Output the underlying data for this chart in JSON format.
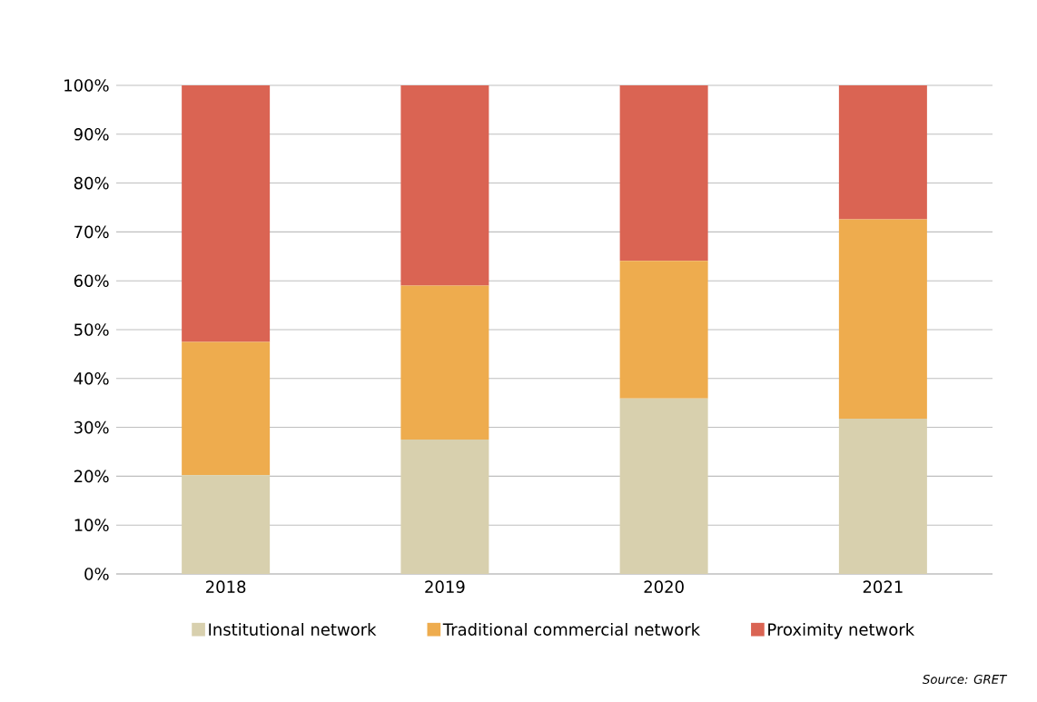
{
  "chart_data": {
    "type": "bar",
    "stacked": true,
    "categories": [
      "2018",
      "2019",
      "2020",
      "2021"
    ],
    "series": [
      {
        "name": "Institutional network",
        "color": "#d8d0ae",
        "values": [
          20.2,
          27.5,
          35.9,
          31.8
        ]
      },
      {
        "name": "Traditional commercial network",
        "color": "#eeac4e",
        "values": [
          27.3,
          31.5,
          28.2,
          40.8
        ]
      },
      {
        "name": "Proximity network",
        "color": "#da6453",
        "values": [
          52.5,
          41.0,
          35.9,
          27.4
        ]
      }
    ],
    "ylim": [
      0,
      100
    ],
    "yticks": [
      {
        "value": 0,
        "label": "0%"
      },
      {
        "value": 10,
        "label": "10%"
      },
      {
        "value": 20,
        "label": "20%"
      },
      {
        "value": 30,
        "label": "30%"
      },
      {
        "value": 40,
        "label": "40%"
      },
      {
        "value": 50,
        "label": "50%"
      },
      {
        "value": 60,
        "label": "60%"
      },
      {
        "value": 70,
        "label": "70%"
      },
      {
        "value": 80,
        "label": "80%"
      },
      {
        "value": 90,
        "label": "90%"
      },
      {
        "value": 100,
        "label": "100%"
      }
    ],
    "grid": "y",
    "legend": "bottom",
    "annotations": [
      "Source: GRET"
    ]
  }
}
